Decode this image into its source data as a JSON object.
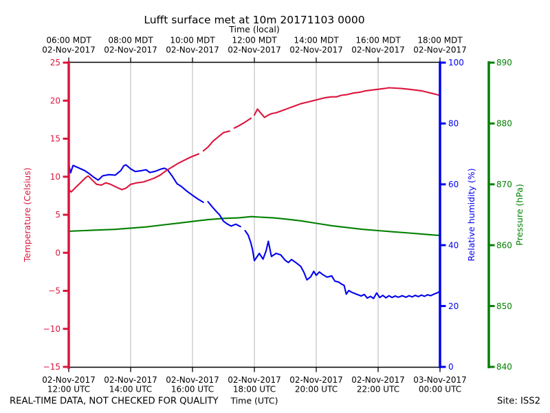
{
  "title": "Lufft surface met at 10m 20171103 0000",
  "footer": {
    "disclaimer": "REAL-TIME DATA, NOT CHECKED FOR QUALITY",
    "site": "Site: ISS2"
  },
  "chart_data": {
    "type": "line",
    "title": "Lufft surface met at 10m 20171103 0000",
    "grid_color": "#b4b4b4",
    "x_range_hours": [
      0,
      12
    ],
    "x_tick_hours": [
      0,
      2,
      4,
      6,
      8,
      10,
      12
    ],
    "x_axis_top": {
      "label": "Time (local)",
      "ticks": [
        {
          "time": "06:00 MDT",
          "date": "02-Nov-2017"
        },
        {
          "time": "08:00 MDT",
          "date": "02-Nov-2017"
        },
        {
          "time": "10:00 MDT",
          "date": "02-Nov-2017"
        },
        {
          "time": "12:00 MDT",
          "date": "02-Nov-2017"
        },
        {
          "time": "14:00 MDT",
          "date": "02-Nov-2017"
        },
        {
          "time": "16:00 MDT",
          "date": "02-Nov-2017"
        },
        {
          "time": "18:00 MDT",
          "date": "02-Nov-2017"
        }
      ]
    },
    "x_axis_bottom": {
      "label": "Time (UTC)",
      "ticks": [
        {
          "date": "02-Nov-2017",
          "time": "12:00 UTC"
        },
        {
          "date": "02-Nov-2017",
          "time": "14:00 UTC"
        },
        {
          "date": "02-Nov-2017",
          "time": "16:00 UTC"
        },
        {
          "date": "02-Nov-2017",
          "time": "18:00 UTC"
        },
        {
          "date": "02-Nov-2017",
          "time": "20:00 UTC"
        },
        {
          "date": "02-Nov-2017",
          "time": "22:00 UTC"
        },
        {
          "date": "03-Nov-2017",
          "time": "00:00 UTC"
        }
      ]
    },
    "y_axes": [
      {
        "id": "temp",
        "label": "Temperature (Celsius)",
        "color": "#DC143C",
        "range": [
          -15,
          25
        ],
        "tick_values": [
          25,
          20,
          15,
          10,
          5,
          0,
          -5,
          -10,
          -15
        ],
        "tick_labels": [
          "25",
          "20",
          "15",
          "10",
          "5",
          "0",
          "−5",
          "−10",
          "−15"
        ]
      },
      {
        "id": "rh",
        "label": "Relative humidity (%)",
        "color": "#0000EE",
        "range": [
          0,
          100
        ],
        "tick_values": [
          0,
          20,
          40,
          60,
          80,
          100
        ],
        "tick_labels": [
          "0",
          "20",
          "40",
          "60",
          "80",
          "100"
        ]
      },
      {
        "id": "press",
        "label": "Pressure (hPa)",
        "color": "#008000",
        "range": [
          840,
          890
        ],
        "tick_values": [
          840,
          850,
          860,
          870,
          880,
          890
        ],
        "tick_labels": [
          "840",
          "850",
          "860",
          "870",
          "880",
          "890"
        ]
      }
    ],
    "series": [
      {
        "name": "pressure",
        "axis": "press",
        "color": "#008000",
        "segments": [
          [
            [
              0,
              862.3
            ],
            [
              0.5,
              862.4
            ],
            [
              1.0,
              862.5
            ],
            [
              1.5,
              862.6
            ],
            [
              2.0,
              862.8
            ],
            [
              2.5,
              863.0
            ],
            [
              3.0,
              863.3
            ],
            [
              3.5,
              863.6
            ],
            [
              4.0,
              863.9
            ],
            [
              4.5,
              864.2
            ],
            [
              5.0,
              864.4
            ],
            [
              5.5,
              864.5
            ],
            [
              5.9,
              864.7
            ],
            [
              6.2,
              864.6
            ],
            [
              6.6,
              864.5
            ],
            [
              7.0,
              864.3
            ],
            [
              7.5,
              864.0
            ],
            [
              8.0,
              863.6
            ],
            [
              8.5,
              863.2
            ],
            [
              9.0,
              862.9
            ],
            [
              9.5,
              862.6
            ],
            [
              10.0,
              862.4
            ],
            [
              10.5,
              862.2
            ],
            [
              11.0,
              862.0
            ],
            [
              11.5,
              861.8
            ],
            [
              12.0,
              861.6
            ]
          ]
        ]
      },
      {
        "name": "relative-humidity",
        "axis": "rh",
        "color": "#0000EE",
        "segments": [
          [
            [
              0,
              66.5
            ],
            [
              0.06,
              63.8
            ],
            [
              0.14,
              66.2
            ],
            [
              0.3,
              65.5
            ],
            [
              0.5,
              64.6
            ],
            [
              0.65,
              63.6
            ],
            [
              0.8,
              62.4
            ],
            [
              0.95,
              61.4
            ],
            [
              1.1,
              62.8
            ],
            [
              1.3,
              63.2
            ],
            [
              1.5,
              63.0
            ],
            [
              1.68,
              64.5
            ],
            [
              1.78,
              66.1
            ],
            [
              1.85,
              66.4
            ],
            [
              2.0,
              65.1
            ],
            [
              2.15,
              64.2
            ],
            [
              2.35,
              64.5
            ],
            [
              2.5,
              64.8
            ],
            [
              2.62,
              63.9
            ],
            [
              2.8,
              64.3
            ],
            [
              3.0,
              65.1
            ],
            [
              3.1,
              65.3
            ],
            [
              3.2,
              64.7
            ],
            [
              3.35,
              62.6
            ],
            [
              3.5,
              60.2
            ],
            [
              3.65,
              59.2
            ],
            [
              3.8,
              57.9
            ],
            [
              4.0,
              56.4
            ],
            [
              4.2,
              55.0
            ],
            [
              4.35,
              54.1
            ]
          ],
          [
            [
              4.5,
              54.3
            ],
            [
              4.62,
              52.8
            ],
            [
              4.75,
              51.3
            ],
            [
              4.88,
              49.9
            ],
            [
              5.0,
              47.9
            ],
            [
              5.12,
              47.0
            ],
            [
              5.25,
              46.3
            ],
            [
              5.4,
              46.9
            ],
            [
              5.55,
              46.1
            ]
          ],
          [
            [
              5.7,
              44.8
            ],
            [
              5.8,
              43.3
            ],
            [
              5.88,
              41.0
            ],
            [
              5.94,
              38.6
            ],
            [
              6.0,
              34.9
            ],
            [
              6.08,
              36.1
            ],
            [
              6.16,
              37.3
            ],
            [
              6.28,
              35.4
            ],
            [
              6.38,
              38.2
            ],
            [
              6.45,
              41.3
            ],
            [
              6.55,
              36.3
            ],
            [
              6.7,
              37.3
            ],
            [
              6.85,
              36.8
            ],
            [
              7.0,
              35.0
            ],
            [
              7.1,
              34.3
            ],
            [
              7.2,
              35.3
            ],
            [
              7.35,
              34.2
            ],
            [
              7.5,
              33.0
            ],
            [
              7.6,
              31.1
            ],
            [
              7.7,
              28.6
            ],
            [
              7.82,
              29.6
            ],
            [
              7.92,
              31.4
            ],
            [
              8.0,
              30.1
            ],
            [
              8.1,
              31.2
            ],
            [
              8.2,
              30.4
            ],
            [
              8.35,
              29.5
            ],
            [
              8.5,
              29.9
            ],
            [
              8.6,
              28.2
            ],
            [
              8.72,
              27.9
            ],
            [
              8.82,
              27.2
            ],
            [
              8.9,
              26.8
            ],
            [
              8.97,
              23.9
            ],
            [
              9.05,
              25.1
            ],
            [
              9.15,
              24.5
            ],
            [
              9.3,
              23.9
            ],
            [
              9.45,
              23.3
            ],
            [
              9.55,
              23.8
            ],
            [
              9.65,
              22.6
            ],
            [
              9.75,
              23.2
            ],
            [
              9.85,
              22.5
            ],
            [
              9.95,
              24.3
            ],
            [
              10.05,
              22.8
            ],
            [
              10.15,
              23.5
            ],
            [
              10.25,
              22.7
            ],
            [
              10.35,
              23.4
            ],
            [
              10.45,
              22.8
            ],
            [
              10.55,
              23.3
            ],
            [
              10.65,
              22.9
            ],
            [
              10.78,
              23.4
            ],
            [
              10.9,
              22.9
            ],
            [
              11.0,
              23.4
            ],
            [
              11.1,
              23.0
            ],
            [
              11.2,
              23.5
            ],
            [
              11.3,
              23.1
            ],
            [
              11.4,
              23.6
            ],
            [
              11.5,
              23.2
            ],
            [
              11.6,
              23.7
            ],
            [
              11.7,
              23.4
            ],
            [
              11.8,
              23.9
            ],
            [
              11.9,
              24.3
            ],
            [
              12,
              24.8
            ]
          ]
        ]
      },
      {
        "name": "temperature",
        "axis": "temp",
        "color": "#DC143C",
        "segments": [
          [
            [
              0,
              8.3
            ],
            [
              0.08,
              8.0
            ],
            [
              0.2,
              8.5
            ],
            [
              0.35,
              9.1
            ],
            [
              0.55,
              9.9
            ],
            [
              0.63,
              10.1
            ],
            [
              0.75,
              9.6
            ],
            [
              0.9,
              9.0
            ],
            [
              1.05,
              8.9
            ],
            [
              1.2,
              9.2
            ],
            [
              1.35,
              9.0
            ],
            [
              1.55,
              8.6
            ],
            [
              1.72,
              8.3
            ],
            [
              1.85,
              8.5
            ],
            [
              2.0,
              9.0
            ],
            [
              2.2,
              9.2
            ],
            [
              2.4,
              9.3
            ],
            [
              2.55,
              9.5
            ],
            [
              2.75,
              9.8
            ],
            [
              2.95,
              10.2
            ],
            [
              3.15,
              10.8
            ],
            [
              3.35,
              11.3
            ],
            [
              3.55,
              11.8
            ],
            [
              3.75,
              12.2
            ],
            [
              3.95,
              12.6
            ],
            [
              4.2,
              13.0
            ]
          ],
          [
            [
              4.35,
              13.4
            ],
            [
              4.5,
              13.9
            ],
            [
              4.67,
              14.7
            ],
            [
              4.85,
              15.3
            ],
            [
              5.0,
              15.8
            ],
            [
              5.2,
              16.0
            ]
          ],
          [
            [
              5.35,
              16.4
            ],
            [
              5.5,
              16.7
            ],
            [
              5.67,
              17.1
            ],
            [
              5.89,
              17.7
            ]
          ],
          [
            [
              6.0,
              18.1
            ],
            [
              6.1,
              18.9
            ],
            [
              6.2,
              18.4
            ],
            [
              6.33,
              17.8
            ],
            [
              6.45,
              18.1
            ],
            [
              6.56,
              18.3
            ],
            [
              6.7,
              18.4
            ],
            [
              6.9,
              18.7
            ],
            [
              7.1,
              19.0
            ],
            [
              7.3,
              19.3
            ],
            [
              7.5,
              19.6
            ],
            [
              7.7,
              19.8
            ],
            [
              7.9,
              20.0
            ],
            [
              8.1,
              20.2
            ],
            [
              8.3,
              20.4
            ],
            [
              8.5,
              20.5
            ],
            [
              8.65,
              20.5
            ],
            [
              8.8,
              20.7
            ],
            [
              9.0,
              20.8
            ],
            [
              9.2,
              21.0
            ],
            [
              9.4,
              21.1
            ],
            [
              9.6,
              21.3
            ],
            [
              9.8,
              21.4
            ],
            [
              10.0,
              21.5
            ],
            [
              10.2,
              21.6
            ],
            [
              10.35,
              21.7
            ],
            [
              10.55,
              21.65
            ],
            [
              10.75,
              21.6
            ],
            [
              11.0,
              21.5
            ],
            [
              11.2,
              21.4
            ],
            [
              11.4,
              21.3
            ],
            [
              11.6,
              21.1
            ],
            [
              11.8,
              20.9
            ],
            [
              12,
              20.7
            ]
          ]
        ]
      }
    ]
  }
}
